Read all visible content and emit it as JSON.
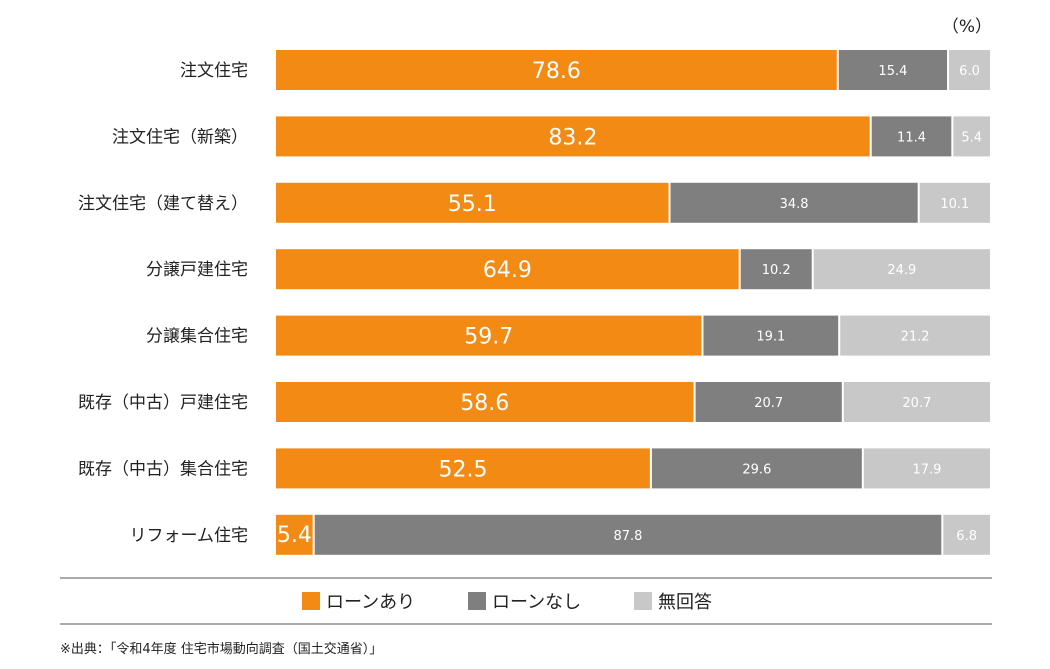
{
  "chart_data": {
    "type": "bar",
    "orientation": "horizontal",
    "stacked": true,
    "unit": "（%）",
    "categories": [
      "注文住宅",
      "注文住宅（新築）",
      "注文住宅（建て替え）",
      "分譲戸建住宅",
      "分譲集合住宅",
      "既存（中古）戸建住宅",
      "既存（中古）集合住宅",
      "リフォーム住宅"
    ],
    "series": [
      {
        "name": "ローンあり",
        "color": "#F28A14",
        "values": [
          78.6,
          83.2,
          55.1,
          64.9,
          59.7,
          58.6,
          52.5,
          5.4
        ]
      },
      {
        "name": "ローンなし",
        "color": "#7F7F7F",
        "values": [
          15.4,
          11.4,
          34.8,
          10.2,
          19.1,
          20.7,
          29.6,
          87.8
        ]
      },
      {
        "name": "無回答",
        "color": "#C8C8C8",
        "values": [
          6.0,
          5.4,
          10.1,
          24.9,
          21.2,
          20.7,
          17.9,
          6.8
        ]
      }
    ],
    "value_labels": [
      [
        "78.6",
        "15.4",
        "6.0"
      ],
      [
        "83.2",
        "11.4",
        "5.4"
      ],
      [
        "55.1",
        "34.8",
        "10.1"
      ],
      [
        "64.9",
        "10.2",
        "24.9"
      ],
      [
        "59.7",
        "19.1",
        "21.2"
      ],
      [
        "58.6",
        "20.7",
        "20.7"
      ],
      [
        "52.5",
        "29.6",
        "17.9"
      ],
      [
        "5.4",
        "87.8",
        "6.8"
      ]
    ],
    "xlim": [
      0,
      100
    ],
    "grid": false,
    "legend_position": "bottom"
  },
  "source": "※出典：「令和4年度 住宅市場動向調査（国土交通省）」"
}
